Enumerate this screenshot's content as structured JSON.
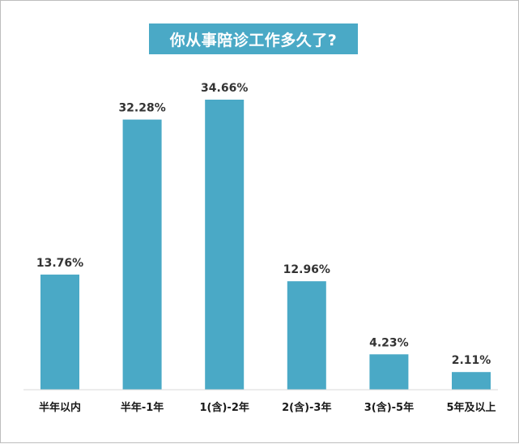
{
  "chart_data": {
    "type": "bar",
    "title": "你从事陪诊工作多久了?",
    "categories": [
      "半年以内",
      "半年-1年",
      "1(含)-2年",
      "2(含)-3年",
      "3(含)-5年",
      "5年及以上"
    ],
    "values": [
      13.76,
      32.28,
      34.66,
      12.96,
      4.23,
      2.11
    ],
    "value_labels": [
      "13.76%",
      "32.28%",
      "34.66%",
      "12.96%",
      "4.23%",
      "2.11%"
    ],
    "unit": "%",
    "ylim": [
      0,
      34.66
    ],
    "xlabel": "",
    "ylabel": "",
    "grid": false,
    "bar_color": "#4aa9c6"
  }
}
